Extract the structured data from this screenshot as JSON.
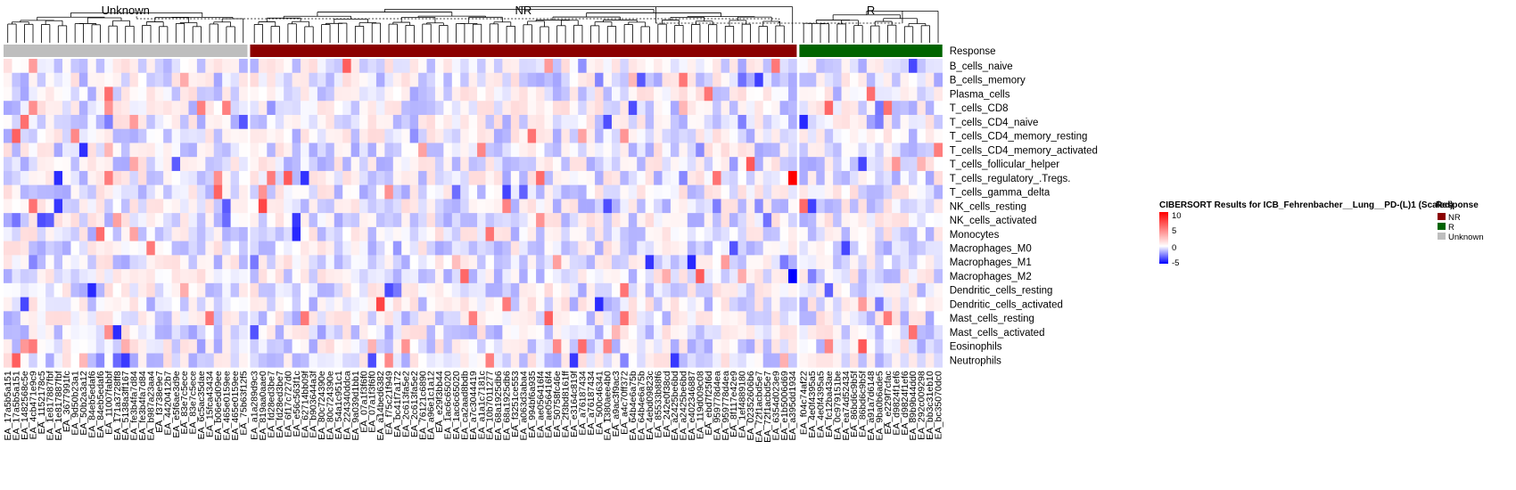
{
  "chart_data": {
    "type": "heatmap",
    "title": "",
    "legend_title": "CIBERSORT Results for ICB_Fehrenbacher__Lung__PD-(L)1 (Scaled)",
    "scale": {
      "min": -5,
      "max": 10,
      "ticks": [
        "10",
        "5",
        "0",
        "-5"
      ],
      "low_color": "#0000FF",
      "mid_color": "#FFFFFF",
      "high_color": "#FF0000"
    },
    "annotation": {
      "name": "Response",
      "legend_title": "Response",
      "levels": [
        {
          "label": "NR",
          "color": "#8B0000"
        },
        {
          "label": "R",
          "color": "#006400"
        },
        {
          "label": "Unknown",
          "color": "#BEBEBE"
        }
      ]
    },
    "groups": [
      {
        "label": "Unknown",
        "n_columns": 29
      },
      {
        "label": "NR",
        "n_columns": 65
      },
      {
        "label": "R",
        "n_columns": 17
      }
    ],
    "rows": [
      "Response",
      "B_cells_naive",
      "B_cells_memory",
      "Plasma_cells",
      "T_cells_CD8",
      "T_cells_CD4_naive",
      "T_cells_CD4_memory_resting",
      "T_cells_CD4_memory_activated",
      "T_cells_follicular_helper",
      "T_cells_regulatory_.Tregs.",
      "T_cells_gamma_delta",
      "NK_cells_resting",
      "NK_cells_activated",
      "Monocytes",
      "Macrophages_M0",
      "Macrophages_M1",
      "Macrophages_M2",
      "Dendritic_cells_resting",
      "Dendritic_cells_activated",
      "Mast_cells_resting",
      "Mast_cells_activated",
      "Eosinophils",
      "Neutrophils"
    ],
    "visible_column_labels": [
      "EA_17a5b5a151",
      "EA_1482568c5e",
      "EA_4cb471e9c9",
      "EA_1152178c5",
      "EA_1e817887fbf",
      "EA_3677991fc",
      "EA_9d50b23a1",
      "EA_50b2a3a12",
      "EA_84eb5edaf6",
      "EA_11007fabbf",
      "EA_171a3728ff8",
      "EA_5138a3ff167",
      "EA_fe3b4fa7d84",
      "EA_b987a23aa4",
      "EA_f3738e9e7",
      "EA_4420412b7",
      "EA_e5f6ae3d9e",
      "EA_83e7c5ece",
      "EA_6c5ac35dae",
      "EA_15fca43434",
      "EA_b06e5d09ee",
      "EA_465e0159ee",
      "EA_75b63f12f5",
      "EA_a1a289d9c3",
      "EA_819aa0aae0",
      "EA_fd28ed3be7",
      "EA_6f17c727d0",
      "EA_e56c563f1c",
      "EA_62714bb09f",
      "EA_b903644a3f",
      "EA_80c724390e",
      "EA_54a1c951c1",
      "EA_224340ddca",
      "EA_9a039d1bb1",
      "EA_07a1f3f6f0",
      "EA_a14bed6382",
      "EA_f75c21f949",
      "EA_bc41f7a172",
      "EA_2c613fa5e2",
      "EA_76121c6890",
      "EA_a96e1c1a12",
      "EA_e29f3bb44",
      "EA_1ac6c65020",
      "EA_ca2aad8bdb",
      "EA_a7c3044419",
      "EA_a1a1c7181c",
      "EA_10b7011277",
      "EA_68a1925db6",
      "EA_f3251ce553",
      "EA_a063d3aba4",
      "EA_994bf6a935",
      "EA_ae056416f4",
      "EA_50758fc46e",
      "EA_2f3bd8161ff",
      "EA_e3164c819f",
      "EA_a76187434",
      "EA_500c46341",
      "EA_1380aee4b0",
      "EA_a9ac3f9ac3",
      "EA_a4c70ff372",
      "EA_64b4e6a75b",
      "EA_4ebd09823c",
      "EA_85533b88f6",
      "EA_242e0f38cd",
      "EA_a2425be6bd",
      "EA_e402346887",
      "EA_119d009c08",
      "EA_ebd7f25f6d",
      "EA_959778d4ea",
      "EA_8f117e42e9",
      "EA_1ef4889180",
      "EA_02352606b6",
      "EA_72f1acbd5e7",
      "EA_6354d023e9",
      "EA_e1b5006d69",
      "EA_a395dd1934",
      "EA_f04c74af22",
      "EA_4e0f4395a5",
      "EA_fc12ba43ae",
      "EA_0c979151be",
      "EA_ea74d52434",
      "EA_86bd6c9b5f",
      "EA_a91a7d6148",
      "EA_9ba0b6ade5",
      "EA_e229f7cfac",
      "EA_d9824f1ef6",
      "EA_89b9b44dd0",
      "EA_292c009298",
      "EA_bb3c31eb10",
      "EA_bc35070dc0"
    ]
  }
}
